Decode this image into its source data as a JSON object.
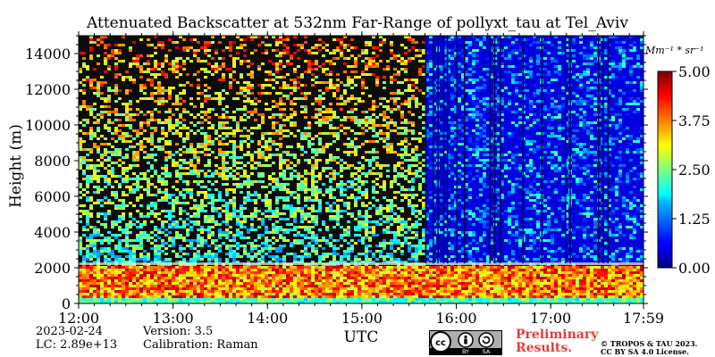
{
  "chart_data": {
    "type": "heatmap",
    "title": "Attenuated Backscatter at 532nm Far-Range of pollyxt_tau at Tel_Aviv",
    "xlabel": "UTC",
    "ylabel": "Height (m)",
    "x_ticks": [
      "12:00",
      "13:00",
      "14:00",
      "15:00",
      "16:00",
      "17:00",
      "17:59"
    ],
    "x_tick_hours": [
      12.0,
      13.0,
      14.0,
      15.0,
      16.0,
      17.0,
      17.983
    ],
    "xlim_hours": [
      12.0,
      17.983
    ],
    "ylim": [
      0,
      15000
    ],
    "y_ticks": [
      0,
      2000,
      4000,
      6000,
      8000,
      10000,
      12000,
      14000
    ],
    "y_tick_labels": [
      "0",
      "2000",
      "4000",
      "6000",
      "8000",
      "10000",
      "12000",
      "14000"
    ],
    "colorbar": {
      "unit_label": "Mm⁻¹ * sr⁻¹",
      "range": [
        0.0,
        5.0
      ],
      "ticks": [
        0.0,
        1.25,
        2.5,
        3.75,
        5.0
      ],
      "tick_labels": [
        "0.00",
        "1.25",
        "2.50",
        "3.75",
        "5.00"
      ],
      "colormap": "jet"
    },
    "features": {
      "boundary_layer_top_m": 2250,
      "aerosol_layer_high_signal_m": [
        400,
        2200
      ],
      "signal_change_time_hours": 15.67,
      "vertical_stripe_hours": [
        15.67,
        15.75,
        15.8,
        15.86,
        15.9,
        16.0,
        16.08,
        16.35,
        16.4,
        16.46,
        16.7,
        16.9,
        17.15,
        17.2,
        17.5,
        17.55,
        17.6
      ]
    }
  },
  "info": {
    "date": "2023-02-24",
    "lc": "LC: 2.89e+13",
    "version": "Version: 3.5",
    "calibration": "Calibration: Raman"
  },
  "badge": {
    "cc": "cc",
    "by": "BY",
    "sa": "SA"
  },
  "preliminary": [
    "Preliminary",
    "Results."
  ],
  "copyright": [
    "© TROPOS & TAU 2023.",
    "CC BY SA 4.0 License."
  ]
}
